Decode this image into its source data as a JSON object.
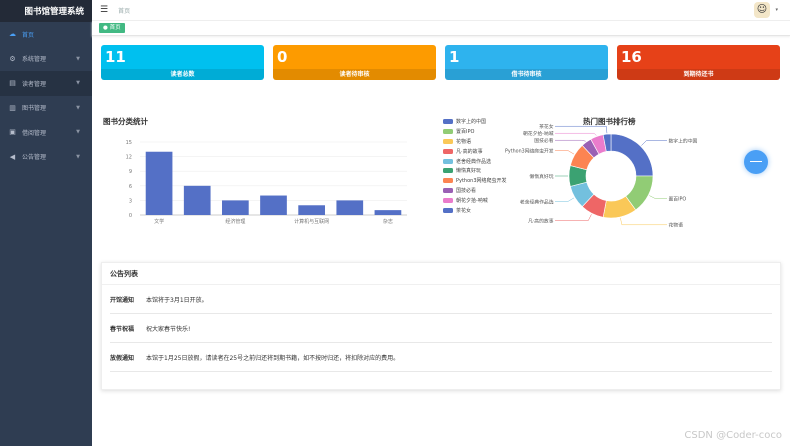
{
  "app": {
    "title": "图书馆管理系统"
  },
  "sidebar": {
    "items": [
      {
        "label": "首页",
        "icon": "dashboard-icon"
      },
      {
        "label": "系统管理",
        "icon": "gear-icon"
      },
      {
        "label": "读者管理",
        "icon": "id-card-icon"
      },
      {
        "label": "图书管理",
        "icon": "books-icon"
      },
      {
        "label": "借阅管理",
        "icon": "document-icon"
      },
      {
        "label": "公告管理",
        "icon": "megaphone-icon"
      }
    ]
  },
  "header": {
    "breadcrumb": "首页",
    "tag": "首页"
  },
  "cards": [
    {
      "value": "11",
      "label": "读者总数",
      "color": "#00c0ef"
    },
    {
      "value": "0",
      "label": "读者待审核",
      "color": "#fd9b00"
    },
    {
      "value": "1",
      "label": "借书待审核",
      "color": "#2eb3ee"
    },
    {
      "value": "16",
      "label": "到期待还书",
      "color": "#e64118"
    }
  ],
  "chart_data": [
    {
      "type": "bar",
      "title": "图书分类统计",
      "categories": [
        "文学",
        "",
        "经济管理",
        "",
        "计算机与互联网",
        "",
        "杂志"
      ],
      "values": [
        13,
        6,
        3,
        4,
        2,
        3,
        1
      ],
      "yticks": [
        "0",
        "3",
        "6",
        "9",
        "12",
        "15"
      ],
      "ylim": [
        0,
        15
      ],
      "color": "#5470c6"
    },
    {
      "type": "pie",
      "title": "热门图书排行榜",
      "labels": [
        "数字上的中国",
        "置百IPO",
        "花物语",
        "凡·高的故事",
        "老舍经典作品选",
        "懒惰真好玩",
        "Python3网络爬虫开发",
        "国技必看",
        "朝花夕拾-呐喊",
        "茶花女"
      ],
      "values": [
        25,
        15,
        13,
        9,
        9,
        8,
        9,
        4,
        5,
        3
      ],
      "colors": [
        "#5470c6",
        "#91cc75",
        "#fac858",
        "#ee6666",
        "#73c0de",
        "#3ba272",
        "#fc8452",
        "#9a60b4",
        "#ea7ccc",
        "#5470c6"
      ],
      "legend": "left"
    }
  ],
  "notice": {
    "title": "公告列表",
    "rows": [
      {
        "title": "开馆通知",
        "content": "本馆将于3月1日开放。"
      },
      {
        "title": "春节祝福",
        "content": "祝大家春节快乐!"
      },
      {
        "title": "放假通知",
        "content": "本馆于1月25日放假，请读者在25号之前归还将到期书籍，如不按时归还，将扣除对应的费用。"
      }
    ]
  },
  "watermark": "CSDN @Coder-coco"
}
